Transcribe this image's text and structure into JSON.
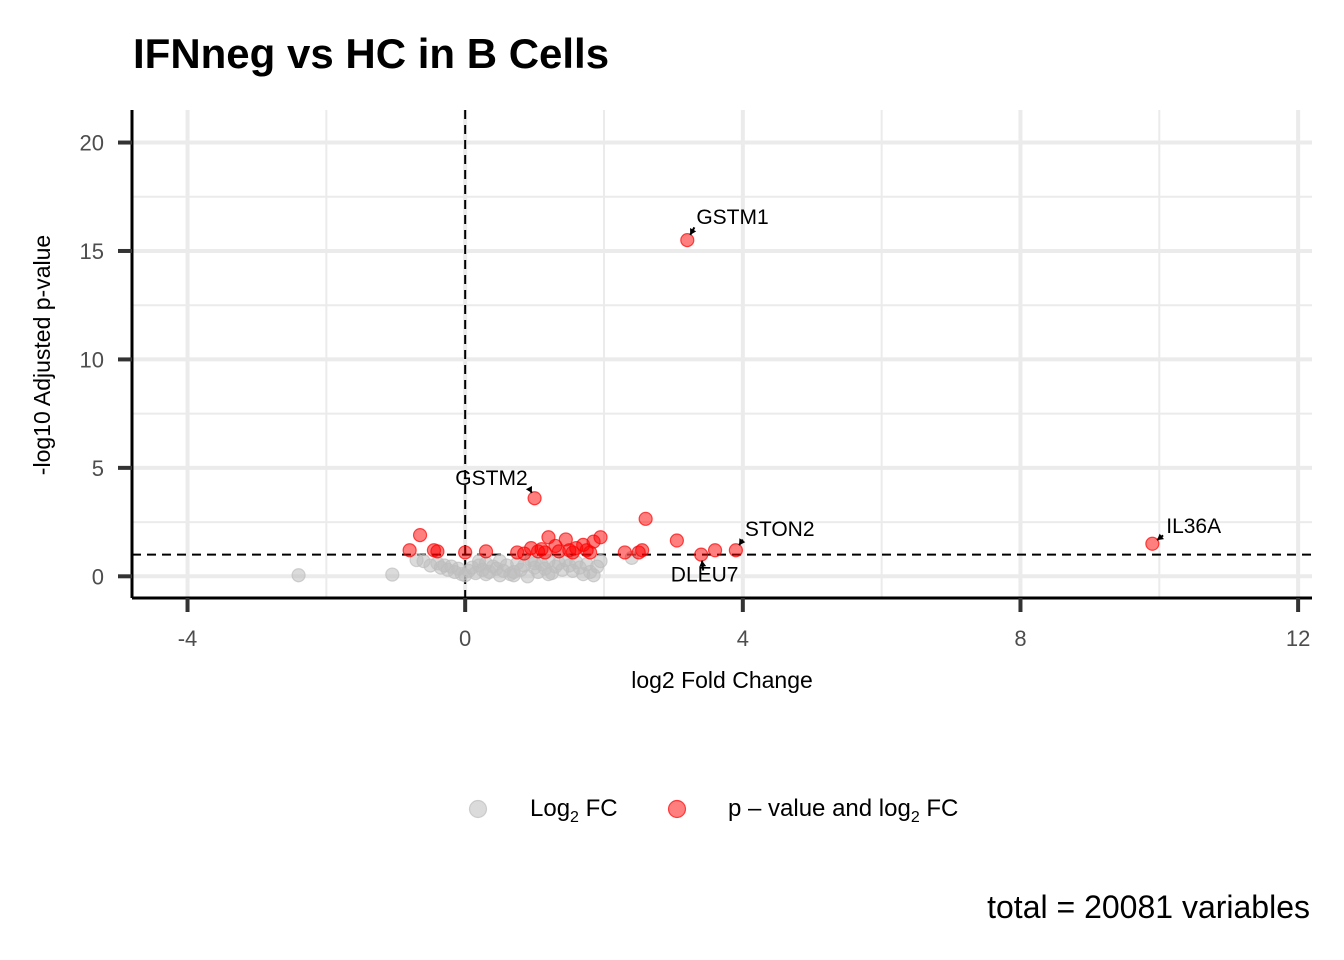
{
  "chart_data": {
    "type": "scatter",
    "title": "IFNneg vs HC in B Cells",
    "xlabel": "log2 Fold Change",
    "ylabel": "-log10 Adjusted p-value",
    "xlim": [
      -4.8,
      12.2
    ],
    "ylim": [
      -1.0,
      21.5
    ],
    "x_ticks": [
      -4,
      0,
      4,
      8,
      12
    ],
    "x_tick_labels": [
      "-4",
      "0",
      "4",
      "8",
      "12"
    ],
    "y_ticks": [
      0,
      5,
      10,
      15,
      20
    ],
    "y_tick_labels": [
      "0",
      "5",
      "10",
      "15",
      "20"
    ],
    "grid": true,
    "cutoffs": {
      "log2fc": 0,
      "neg_log10_padj": 1.0
    },
    "legend_position": "bottom",
    "caption": "total = 20081 variables",
    "series": [
      {
        "name": "Log2 FC",
        "legend_main": "Log",
        "legend_sub": "2",
        "legend_tail": " FC",
        "color": "#bebebe",
        "points": [
          [
            -2.4,
            0.05
          ],
          [
            -1.05,
            0.08
          ],
          [
            -0.7,
            0.75
          ],
          [
            -0.6,
            0.7
          ],
          [
            -0.5,
            0.5
          ],
          [
            -0.4,
            0.6
          ],
          [
            -0.35,
            0.4
          ],
          [
            -0.3,
            0.5
          ],
          [
            -0.25,
            0.3
          ],
          [
            -0.2,
            0.45
          ],
          [
            -0.15,
            0.2
          ],
          [
            -0.1,
            0.35
          ],
          [
            -0.05,
            0.1
          ],
          [
            0.0,
            0.05
          ],
          [
            0.05,
            0.25
          ],
          [
            0.1,
            0.4
          ],
          [
            0.15,
            0.15
          ],
          [
            0.2,
            0.5
          ],
          [
            0.25,
            0.3
          ],
          [
            0.3,
            0.6
          ],
          [
            0.35,
            0.2
          ],
          [
            0.4,
            0.45
          ],
          [
            0.45,
            0.35
          ],
          [
            0.5,
            0.7
          ],
          [
            0.55,
            0.25
          ],
          [
            0.6,
            0.5
          ],
          [
            0.65,
            0.1
          ],
          [
            0.7,
            0.05
          ],
          [
            0.75,
            0.6
          ],
          [
            0.8,
            0.3
          ],
          [
            0.85,
            0.5
          ],
          [
            0.9,
            0.0
          ],
          [
            0.95,
            0.75
          ],
          [
            1.0,
            0.4
          ],
          [
            1.05,
            0.2
          ],
          [
            1.1,
            0.55
          ],
          [
            1.15,
            0.35
          ],
          [
            1.2,
            0.7
          ],
          [
            1.25,
            0.15
          ],
          [
            1.3,
            0.45
          ],
          [
            1.35,
            0.6
          ],
          [
            1.4,
            0.3
          ],
          [
            1.45,
            0.75
          ],
          [
            1.5,
            0.5
          ],
          [
            1.55,
            0.25
          ],
          [
            1.6,
            0.65
          ],
          [
            1.65,
            0.4
          ],
          [
            1.7,
            0.1
          ],
          [
            1.75,
            0.55
          ],
          [
            1.8,
            0.2
          ],
          [
            1.85,
            0.05
          ],
          [
            1.9,
            0.45
          ],
          [
            1.95,
            0.7
          ],
          [
            2.4,
            0.85
          ],
          [
            0.7,
            0.2
          ],
          [
            1.2,
            0.1
          ],
          [
            0.3,
            0.1
          ],
          [
            0.5,
            0.05
          ],
          [
            1.0,
            0.6
          ],
          [
            0.2,
            0.7
          ]
        ]
      },
      {
        "name": "p – value and log2 FC",
        "legend_main": "p – value and log",
        "legend_sub": "2",
        "legend_tail": " FC",
        "color": "#ff0000",
        "points": [
          [
            3.2,
            15.5
          ],
          [
            1.0,
            3.6
          ],
          [
            3.9,
            1.2
          ],
          [
            9.9,
            1.5
          ],
          [
            3.4,
            1.0
          ],
          [
            -0.8,
            1.2
          ],
          [
            -0.65,
            1.9
          ],
          [
            -0.45,
            1.2
          ],
          [
            -0.4,
            1.15
          ],
          [
            0.0,
            1.1
          ],
          [
            0.3,
            1.15
          ],
          [
            0.75,
            1.1
          ],
          [
            0.95,
            1.3
          ],
          [
            1.05,
            1.15
          ],
          [
            1.15,
            1.1
          ],
          [
            1.2,
            1.8
          ],
          [
            1.3,
            1.4
          ],
          [
            1.35,
            1.15
          ],
          [
            1.45,
            1.7
          ],
          [
            1.5,
            1.2
          ],
          [
            1.55,
            1.1
          ],
          [
            1.6,
            1.3
          ],
          [
            1.7,
            1.45
          ],
          [
            1.8,
            1.1
          ],
          [
            1.85,
            1.6
          ],
          [
            1.95,
            1.8
          ],
          [
            2.3,
            1.1
          ],
          [
            2.55,
            1.2
          ],
          [
            2.6,
            2.65
          ],
          [
            3.05,
            1.65
          ],
          [
            3.6,
            1.2
          ],
          [
            2.5,
            1.1
          ],
          [
            1.75,
            1.2
          ],
          [
            1.1,
            1.25
          ],
          [
            0.85,
            1.05
          ]
        ]
      }
    ],
    "labels": [
      {
        "text": "GSTM1",
        "x": 3.2,
        "y": 15.5,
        "lx": 3.33,
        "ly": 16.25,
        "anchor": "start"
      },
      {
        "text": "GSTM2",
        "x": 1.0,
        "y": 3.6,
        "lx": 0.9,
        "ly": 4.2,
        "anchor": "end"
      },
      {
        "text": "STON2",
        "x": 3.9,
        "y": 1.2,
        "lx": 4.03,
        "ly": 1.85,
        "anchor": "start"
      },
      {
        "text": "IL36A",
        "x": 9.9,
        "y": 1.5,
        "lx": 10.1,
        "ly": 2.0,
        "anchor": "start"
      },
      {
        "text": "DLEU7",
        "x": 3.4,
        "y": 1.0,
        "lx": 3.45,
        "ly": -0.25,
        "anchor": "middle"
      }
    ]
  }
}
